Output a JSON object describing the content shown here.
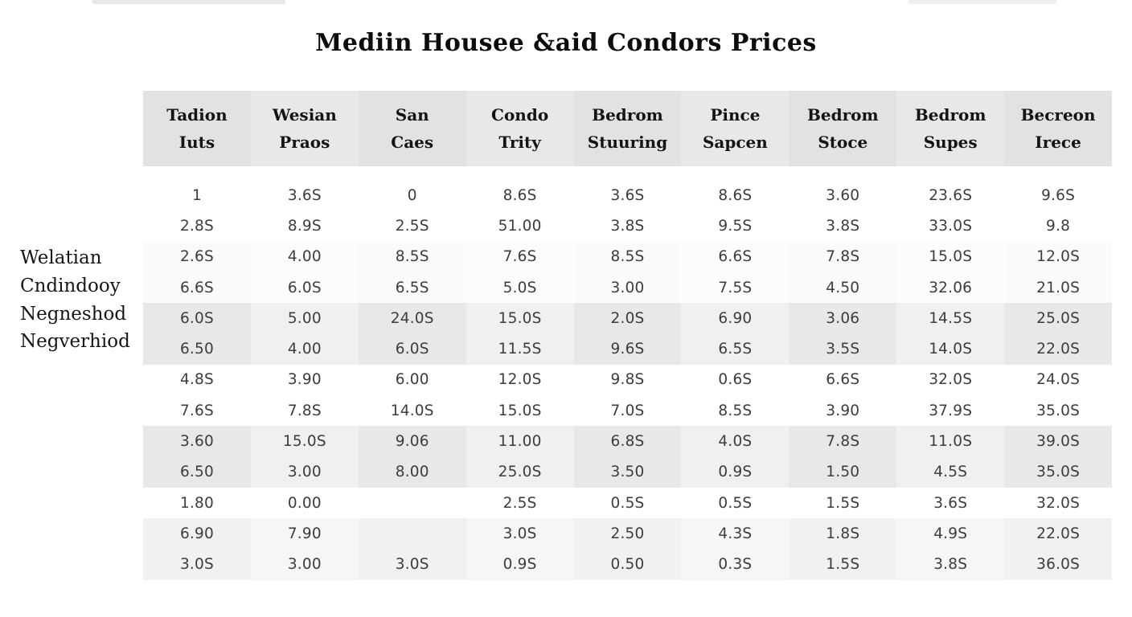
{
  "title": "Mediin Housee &aid Condors Prices",
  "colors": {
    "header_band": "#e2e2e2",
    "shaded_band": "#e8e8e8",
    "light_band": "#f1f1f1",
    "text": "#3d3d3d"
  },
  "chart_data": {
    "type": "table",
    "title": "Mediin Housee &aid Condors Prices",
    "columns": [
      {
        "line1": "Tadion",
        "line2": "Iuts"
      },
      {
        "line1": "Wesian",
        "line2": "Praos"
      },
      {
        "line1": "San",
        "line2": "Caes"
      },
      {
        "line1": "Condo",
        "line2": "Trity"
      },
      {
        "line1": "Bedrom",
        "line2": "Stuuring"
      },
      {
        "line1": "Pince",
        "line2": "Sapcen"
      },
      {
        "line1": "Bedrom",
        "line2": "Stoce"
      },
      {
        "line1": "Bedrom",
        "line2": "Supes"
      },
      {
        "line1": "Becreon",
        "line2": "Irece"
      }
    ],
    "row_labels": [
      "Welatian",
      "Cndindooy",
      "Negneshod",
      "Negverhiod"
    ],
    "rows": [
      [
        "1",
        "3.6S",
        "0",
        "8.6S",
        "3.6S",
        "8.6S",
        "3.60",
        "23.6S",
        "9.6S"
      ],
      [
        "2.8S",
        "8.9S",
        "2.5S",
        "51.00",
        "3.8S",
        "9.5S",
        "3.8S",
        "33.0S",
        "9.8"
      ],
      [
        "2.6S",
        "4.00",
        "8.5S",
        "7.6S",
        "8.5S",
        "6.6S",
        "7.8S",
        "15.0S",
        "12.0S"
      ],
      [
        "6.6S",
        "6.0S",
        "6.5S",
        "5.0S",
        "3.00",
        "7.5S",
        "4.50",
        "32.06",
        "21.0S"
      ],
      [
        "6.0S",
        "5.00",
        "24.0S",
        "15.0S",
        "2.0S",
        "6.90",
        "3.06",
        "14.5S",
        "25.0S"
      ],
      [
        "6.50",
        "4.00",
        "6.0S",
        "11.5S",
        "9.6S",
        "6.5S",
        "3.5S",
        "14.0S",
        "22.0S"
      ],
      [
        "4.8S",
        "3.90",
        "6.00",
        "12.0S",
        "9.8S",
        "0.6S",
        "6.6S",
        "32.0S",
        "24.0S"
      ],
      [
        "7.6S",
        "7.8S",
        "14.0S",
        "15.0S",
        "7.0S",
        "8.5S",
        "3.90",
        "37.9S",
        "35.0S"
      ],
      [
        "3.60",
        "15.0S",
        "9.06",
        "11.00",
        "6.8S",
        "4.0S",
        "7.8S",
        "11.0S",
        "39.0S"
      ],
      [
        "6.50",
        "3.00",
        "8.00",
        "25.0S",
        "3.50",
        "0.9S",
        "1.50",
        "4.5S",
        "35.0S"
      ],
      [
        "1.80",
        "0.00",
        "",
        "2.5S",
        "0.5S",
        "0.5S",
        "1.5S",
        "3.6S",
        "32.0S"
      ],
      [
        "6.90",
        "7.90",
        "",
        "3.0S",
        "2.50",
        "4.3S",
        "1.8S",
        "4.9S",
        "22.0S"
      ],
      [
        "3.0S",
        "3.00",
        "3.0S",
        "0.9S",
        "0.50",
        "0.3S",
        "1.5S",
        "3.8S",
        "36.0S"
      ]
    ]
  }
}
